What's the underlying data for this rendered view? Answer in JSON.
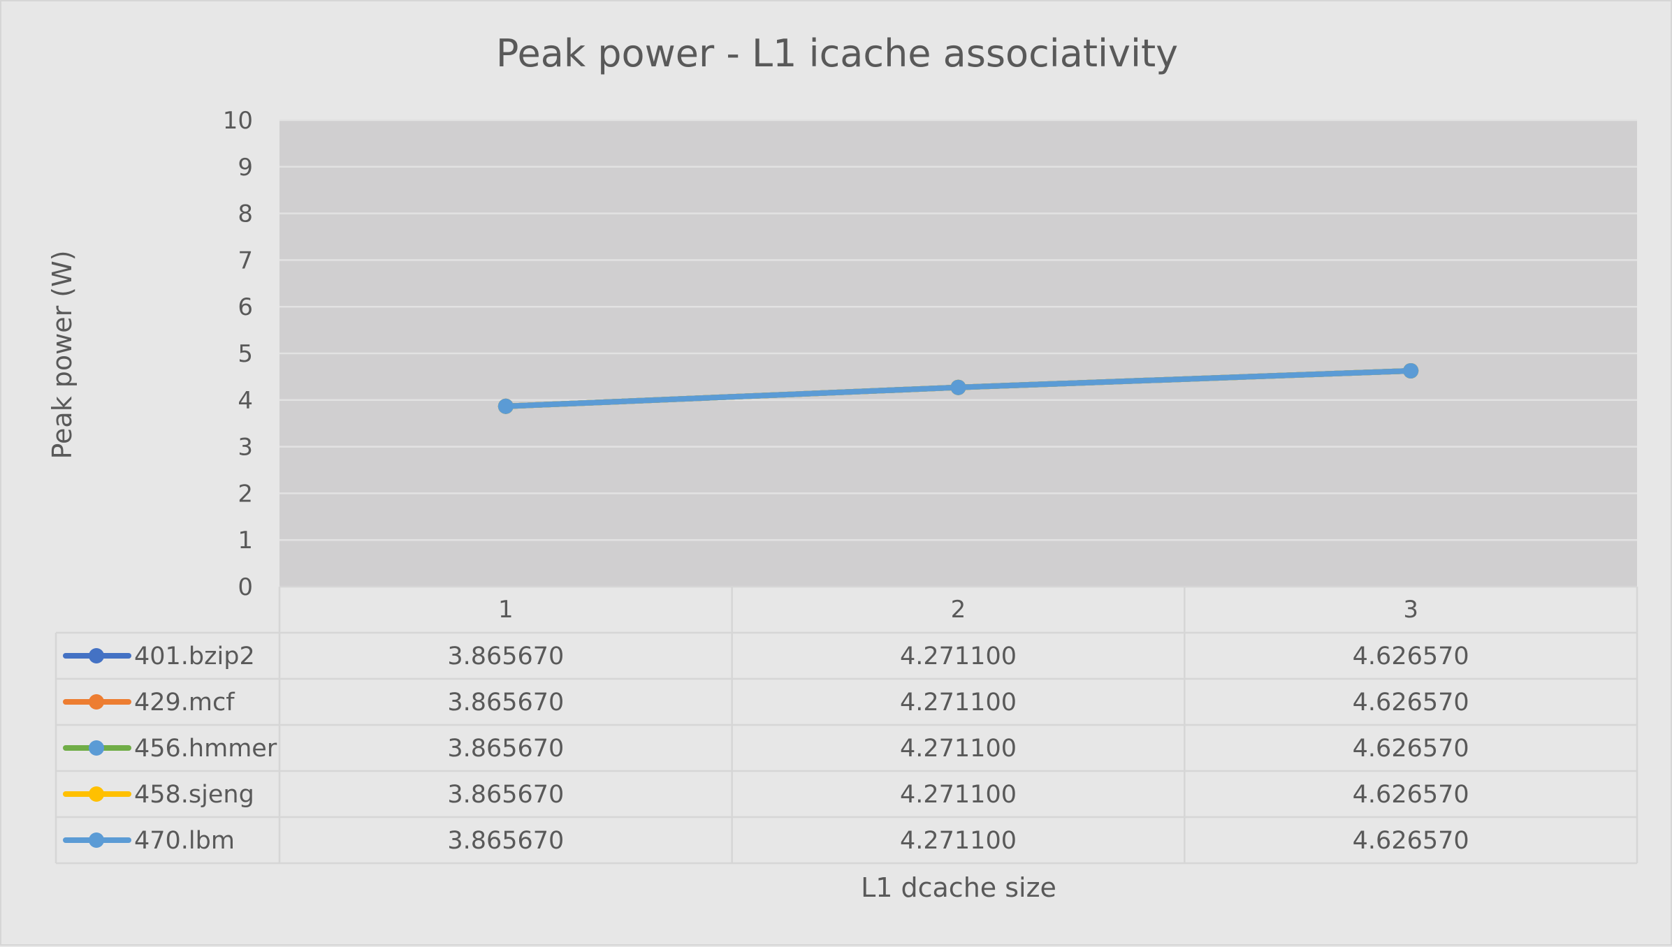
{
  "chart_data": {
    "type": "line",
    "title": "Peak power - L1 icache associativity",
    "xlabel": "L1 dcache size",
    "ylabel": "Peak power (W)",
    "categories": [
      "1",
      "2",
      "3"
    ],
    "ylim": [
      0,
      10
    ],
    "yticks": [
      0,
      1,
      2,
      3,
      4,
      5,
      6,
      7,
      8,
      9,
      10
    ],
    "grid": true,
    "legend": "data-table",
    "series": [
      {
        "name": "401.bzip2",
        "color": "#4472c4",
        "values": [
          3.86567,
          4.2711,
          4.62657
        ],
        "labels": [
          "3.865670",
          "4.271100",
          "4.626570"
        ]
      },
      {
        "name": "429.mcf",
        "color": "#ed7d31",
        "values": [
          3.86567,
          4.2711,
          4.62657
        ],
        "labels": [
          "3.865670",
          "4.271100",
          "4.626570"
        ]
      },
      {
        "name": "456.hmmer",
        "color": "#70ad47",
        "values": [
          3.86567,
          4.2711,
          4.62657
        ],
        "labels": [
          "3.865670",
          "4.271100",
          "4.626570"
        ]
      },
      {
        "name": "458.sjeng",
        "color": "#ffc000",
        "values": [
          3.86567,
          4.2711,
          4.62657
        ],
        "labels": [
          "3.865670",
          "4.271100",
          "4.626570"
        ]
      },
      {
        "name": "470.lbm",
        "color": "#5b9bd5",
        "values": [
          3.86567,
          4.2711,
          4.62657
        ],
        "labels": [
          "3.865670",
          "4.271100",
          "4.626570"
        ]
      }
    ]
  }
}
